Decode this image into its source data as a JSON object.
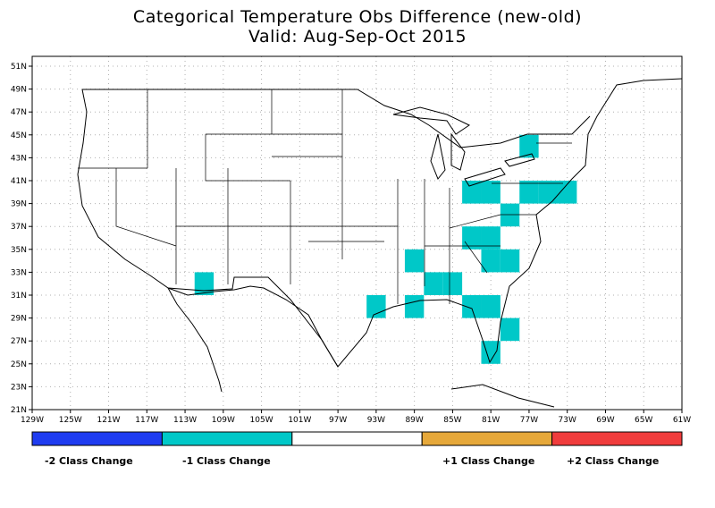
{
  "title": {
    "line1": "Categorical Temperature Obs Difference (new-old)",
    "line2": "Valid: Aug-Sep-Oct 2015"
  },
  "axes": {
    "lon_min": -129,
    "lon_max": -61,
    "lat_min": 21,
    "lat_max": 52,
    "x_ticks": [
      "129W",
      "125W",
      "121W",
      "117W",
      "113W",
      "109W",
      "105W",
      "101W",
      "97W",
      "93W",
      "89W",
      "85W",
      "81W",
      "77W",
      "73W",
      "69W",
      "65W",
      "61W"
    ],
    "x_tick_values": [
      -129,
      -125,
      -121,
      -117,
      -113,
      -109,
      -105,
      -101,
      -97,
      -93,
      -89,
      -85,
      -81,
      -77,
      -73,
      -69,
      -65,
      -61
    ],
    "y_ticks": [
      "21N",
      "23N",
      "25N",
      "27N",
      "29N",
      "31N",
      "33N",
      "35N",
      "37N",
      "39N",
      "41N",
      "43N",
      "45N",
      "47N",
      "49N",
      "51N"
    ],
    "y_tick_values": [
      21,
      23,
      25,
      27,
      29,
      31,
      33,
      35,
      37,
      39,
      41,
      43,
      45,
      47,
      49,
      51
    ],
    "grid": "dotted"
  },
  "cell_size_deg": 2,
  "cells_minus1": [
    [
      -112,
      31
    ],
    [
      -94,
      29
    ],
    [
      -90,
      29
    ],
    [
      -90,
      33
    ],
    [
      -86,
      31
    ],
    [
      -88,
      31
    ],
    [
      -84,
      29
    ],
    [
      -82,
      29
    ],
    [
      -80,
      27
    ],
    [
      -82,
      25
    ],
    [
      -84,
      35
    ],
    [
      -82,
      35
    ],
    [
      -82,
      33
    ],
    [
      -80,
      33
    ],
    [
      -84,
      39
    ],
    [
      -82,
      39
    ],
    [
      -80,
      37
    ],
    [
      -78,
      39
    ],
    [
      -76,
      39
    ],
    [
      -74,
      39
    ],
    [
      -78,
      43
    ]
  ],
  "legend": {
    "colors": [
      "#1f3cf0",
      "#00c8c8",
      "#ffffff",
      "#e6a83a",
      "#f03c3c"
    ],
    "labels": {
      "minus2": "-2 Class Change",
      "minus1": "-1 Class Change",
      "plus1": "+1 Class Change",
      "plus2": "+2 Class Change"
    }
  },
  "colors": {
    "minus1_cell": "#00c8c8",
    "grid": "#b0b0b0",
    "boundaries": "#000000"
  }
}
